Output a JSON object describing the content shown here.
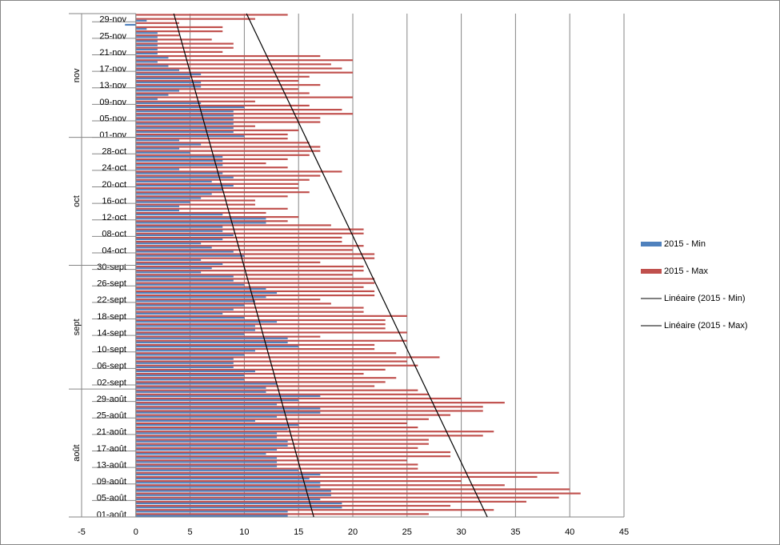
{
  "chart_data": {
    "type": "bar",
    "categories": [
      "01-août",
      null,
      null,
      null,
      "05-août",
      null,
      null,
      null,
      "09-août",
      null,
      null,
      null,
      "13-août",
      null,
      null,
      null,
      "17-août",
      null,
      null,
      null,
      "21-août",
      null,
      null,
      null,
      "25-août",
      null,
      null,
      null,
      "29-août",
      null,
      null,
      null,
      "02-sept",
      null,
      null,
      null,
      "06-sept",
      null,
      null,
      null,
      "10-sept",
      null,
      null,
      null,
      "14-sept",
      null,
      null,
      null,
      "18-sept",
      null,
      null,
      null,
      "22-sept",
      null,
      null,
      null,
      "26-sept",
      null,
      null,
      null,
      "30-sept",
      null,
      null,
      null,
      "04-oct",
      null,
      null,
      null,
      "08-oct",
      null,
      null,
      null,
      "12-oct",
      null,
      null,
      null,
      "16-oct",
      null,
      null,
      null,
      "20-oct",
      null,
      null,
      null,
      "24-oct",
      null,
      null,
      null,
      "28-oct",
      null,
      null,
      null,
      "01-nov",
      null,
      null,
      null,
      "05-nov",
      null,
      null,
      null,
      "09-nov",
      null,
      null,
      null,
      "13-nov",
      null,
      null,
      null,
      "17-nov",
      null,
      null,
      null,
      "21-nov",
      null,
      null,
      null,
      "25-nov",
      null,
      null,
      null,
      "29-nov",
      null
    ],
    "groups": [
      {
        "label": "août",
        "count": 31
      },
      {
        "label": "sept",
        "count": 30
      },
      {
        "label": "oct",
        "count": 31
      },
      {
        "label": "nov",
        "count": 30
      }
    ],
    "series": [
      {
        "name": "2015 -  Max",
        "color": "#c0504d",
        "values": [
          27,
          33,
          29,
          36,
          39,
          41,
          40,
          34,
          30,
          37,
          39,
          26,
          26,
          25,
          29,
          29,
          26,
          27,
          27,
          32,
          33,
          26,
          25,
          27,
          29,
          32,
          32,
          34,
          30,
          27,
          26,
          22,
          23,
          24,
          21,
          23,
          26,
          25,
          28,
          24,
          22,
          22,
          25,
          17,
          25,
          23,
          23,
          23,
          25,
          21,
          21,
          18,
          17,
          22,
          22,
          21,
          22,
          22,
          20,
          21,
          21,
          17,
          22,
          22,
          20,
          21,
          19,
          19,
          21,
          21,
          18,
          14,
          15,
          12,
          14,
          11,
          11,
          14,
          16,
          15,
          15,
          16,
          17,
          19,
          14,
          12,
          14,
          16,
          17,
          17,
          16,
          14,
          14,
          15,
          11,
          17,
          17,
          20,
          19,
          16,
          11,
          20,
          16,
          15,
          17,
          15,
          16,
          20,
          19,
          18,
          20,
          17,
          8,
          9,
          9,
          7,
          4,
          8,
          8,
          4,
          11,
          14
        ]
      },
      {
        "name": "2015 -  Min",
        "color": "#4f81bd",
        "values": [
          14,
          14,
          19,
          19,
          17,
          18,
          18,
          17,
          17,
          16,
          17,
          15,
          13,
          13,
          13,
          12,
          13,
          14,
          14,
          13,
          13,
          14,
          15,
          11,
          13,
          17,
          17,
          13,
          15,
          17,
          12,
          12,
          13,
          10,
          10,
          11,
          9,
          9,
          9,
          10,
          11,
          15,
          14,
          14,
          10,
          11,
          11,
          13,
          10,
          8,
          9,
          10,
          11,
          12,
          13,
          12,
          10,
          9,
          9,
          6,
          7,
          8,
          6,
          10,
          9,
          7,
          6,
          8,
          9,
          8,
          8,
          12,
          12,
          8,
          4,
          4,
          5,
          6,
          7,
          8,
          9,
          7,
          9,
          8,
          4,
          8,
          8,
          8,
          5,
          4,
          6,
          4,
          10,
          9,
          9,
          9,
          9,
          9,
          9,
          10,
          6,
          2,
          3,
          4,
          6,
          6,
          5,
          6,
          4,
          3,
          2,
          3,
          2,
          2,
          2,
          2,
          2,
          2,
          1,
          -1,
          1,
          0
        ]
      }
    ],
    "trendlines": [
      {
        "name": "Linéaire (2015 -  Min)",
        "color": "#000000",
        "start": 16.4,
        "end": 3.5
      },
      {
        "name": "Linéaire (2015 -  Max)",
        "color": "#000000",
        "start": 32.4,
        "end": 10.2
      }
    ],
    "xlim": [
      -5,
      45
    ],
    "xticks": [
      -5,
      0,
      5,
      10,
      15,
      20,
      25,
      30,
      35,
      40,
      45
    ],
    "grid": true,
    "legend": "right"
  }
}
